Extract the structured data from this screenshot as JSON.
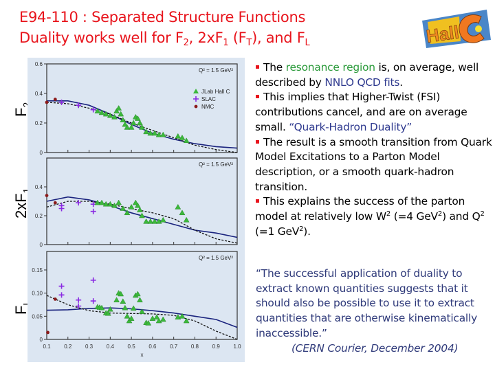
{
  "header": {
    "title_line1": "E94-110 : Separated Structure Functions",
    "title_line2_prefix": "Duality works well for F",
    "title_line2_sub1": "2",
    "title_line2_mid1": ", 2xF",
    "title_line2_sub2": "1",
    "title_line2_mid2": " (F",
    "title_line2_sub3": "T",
    "title_line2_mid3": "), and F",
    "title_line2_sub4": "L",
    "title_color": "#e8141c",
    "logo": {
      "text": "Hall C",
      "icon": "hall-c-logo-icon"
    }
  },
  "y_labels": {
    "f2": {
      "main": "F",
      "sub": "2"
    },
    "f1": {
      "main": "2xF",
      "sub": "1"
    },
    "fl": {
      "main": "F",
      "sub": "L"
    }
  },
  "bullets": [
    {
      "parts": [
        {
          "t": "The "
        },
        {
          "t": "resonance region",
          "c": "green"
        },
        {
          "t": " is, on average, well described by "
        },
        {
          "t": "NNLO QCD fits",
          "c": "blue"
        },
        {
          "t": "."
        }
      ]
    },
    {
      "parts": [
        {
          "t": "This implies that Higher-Twist (FSI) contributions cancel, and are on average small. "
        },
        {
          "t": "“Quark-Hadron Duality”",
          "c": "blue"
        }
      ]
    },
    {
      "parts": [
        {
          "t": "The result is a smooth transition from Quark Model Excitations to a Parton Model description, or a smooth quark-hadron transition."
        }
      ]
    },
    {
      "parts": [
        {
          "t": "This explains the success of the parton model at relatively low W"
        },
        {
          "t": "2",
          "sup": true
        },
        {
          "t": " (=4 GeV"
        },
        {
          "t": "2",
          "sup": true
        },
        {
          "t": ") and Q"
        },
        {
          "t": "2",
          "sup": true
        },
        {
          "t": " (=1 GeV"
        },
        {
          "t": "2",
          "sup": true
        },
        {
          "t": ")."
        }
      ]
    }
  ],
  "quote": {
    "text": "“The successful application of duality to extract known quantities suggests that it should also be possible  to use it to extract quantities that are otherwise kinematically inaccessible.”",
    "citation": "(CERN Courier, December 2004)"
  },
  "chart_data": [
    {
      "type": "scatter",
      "title": "F2",
      "annotation": "Q² = 1.5 GeV²",
      "xlabel": "x",
      "ylabel": "F2",
      "xlim": [
        0.1,
        1.0
      ],
      "ylim": [
        0,
        0.6
      ],
      "yticks": [
        0,
        0.2,
        0.4,
        0.6
      ],
      "legend": [
        "JLab Hall C",
        "SLAC",
        "NMC"
      ],
      "legend_colors": {
        "JLab Hall C": "#3cb83c",
        "SLAC": "#8a2be2",
        "NMC": "#8b1a1a"
      },
      "series": [
        {
          "name": "NMC",
          "x": [
            0.1,
            0.14
          ],
          "y": [
            0.34,
            0.36
          ]
        },
        {
          "name": "SLAC",
          "x": [
            0.17,
            0.25,
            0.32
          ],
          "y": [
            0.34,
            0.32,
            0.29
          ]
        },
        {
          "name": "JLab Hall C",
          "x": [
            0.34,
            0.36,
            0.38,
            0.4,
            0.42,
            0.43,
            0.44,
            0.45,
            0.46,
            0.47,
            0.48,
            0.5,
            0.51,
            0.52,
            0.53,
            0.54,
            0.55,
            0.57,
            0.59,
            0.61,
            0.63,
            0.65,
            0.72,
            0.74,
            0.76
          ],
          "y": [
            0.28,
            0.27,
            0.26,
            0.25,
            0.24,
            0.28,
            0.3,
            0.26,
            0.22,
            0.19,
            0.17,
            0.17,
            0.2,
            0.24,
            0.23,
            0.2,
            0.17,
            0.14,
            0.13,
            0.13,
            0.12,
            0.12,
            0.11,
            0.1,
            0.08
          ]
        },
        {
          "name": "NNLO QCD (solid)",
          "x": [
            0.1,
            0.2,
            0.3,
            0.4,
            0.5,
            0.6,
            0.7,
            0.8,
            0.9,
            1.0
          ],
          "y": [
            0.35,
            0.35,
            0.32,
            0.26,
            0.19,
            0.13,
            0.09,
            0.06,
            0.04,
            0.03
          ]
        },
        {
          "name": "NNLO QCD (dashed)",
          "x": [
            0.1,
            0.2,
            0.3,
            0.4,
            0.5,
            0.6,
            0.7,
            0.8,
            0.9,
            1.0
          ],
          "y": [
            0.34,
            0.33,
            0.3,
            0.26,
            0.2,
            0.15,
            0.1,
            0.05,
            0.02,
            0.0
          ]
        }
      ]
    },
    {
      "type": "scatter",
      "title": "2xF1",
      "annotation": "Q² = 1.5 GeV²",
      "xlabel": "x",
      "ylabel": "2xF1",
      "xlim": [
        0.1,
        1.0
      ],
      "ylim": [
        0,
        0.6
      ],
      "yticks": [
        0,
        0.2,
        0.4
      ],
      "series": [
        {
          "name": "NMC",
          "x": [
            0.1,
            0.14
          ],
          "y": [
            0.34,
            0.29
          ]
        },
        {
          "name": "SLAC",
          "x": [
            0.17,
            0.17,
            0.25,
            0.32,
            0.32
          ],
          "y": [
            0.27,
            0.25,
            0.29,
            0.28,
            0.23
          ]
        },
        {
          "name": "JLab Hall C",
          "x": [
            0.34,
            0.36,
            0.38,
            0.4,
            0.42,
            0.44,
            0.46,
            0.48,
            0.5,
            0.52,
            0.53,
            0.54,
            0.55,
            0.57,
            0.59,
            0.61,
            0.63,
            0.65,
            0.72,
            0.74,
            0.76
          ],
          "y": [
            0.29,
            0.29,
            0.28,
            0.28,
            0.27,
            0.29,
            0.25,
            0.22,
            0.26,
            0.29,
            0.27,
            0.24,
            0.2,
            0.16,
            0.16,
            0.16,
            0.16,
            0.17,
            0.26,
            0.22,
            0.17
          ]
        },
        {
          "name": "NNLO QCD (solid)",
          "x": [
            0.1,
            0.2,
            0.3,
            0.4,
            0.5,
            0.6,
            0.7,
            0.8,
            0.9,
            1.0
          ],
          "y": [
            0.3,
            0.33,
            0.31,
            0.27,
            0.22,
            0.18,
            0.14,
            0.1,
            0.08,
            0.05
          ]
        },
        {
          "name": "NNLO QCD (dashed)",
          "x": [
            0.1,
            0.2,
            0.3,
            0.4,
            0.5,
            0.6,
            0.7,
            0.8,
            0.9,
            1.0
          ],
          "y": [
            0.26,
            0.3,
            0.3,
            0.28,
            0.25,
            0.22,
            0.18,
            0.1,
            0.04,
            0.01
          ]
        }
      ]
    },
    {
      "type": "scatter",
      "title": "FL",
      "annotation": "Q² = 1.5 GeV²",
      "xlabel": "x",
      "ylabel": "FL",
      "xlim": [
        0.1,
        1.0
      ],
      "ylim": [
        0,
        0.18
      ],
      "yticks": [
        0,
        0.05,
        0.1,
        0.15
      ],
      "xticks": [
        0.1,
        0.2,
        0.3,
        0.4,
        0.5,
        0.6,
        0.7,
        0.8,
        0.9,
        1.0
      ],
      "series": [
        {
          "name": "NMC",
          "x": [
            0.105,
            0.14
          ],
          "y": [
            0.015,
            0.087
          ]
        },
        {
          "name": "SLAC",
          "x": [
            0.17,
            0.17,
            0.25,
            0.25,
            0.32,
            0.32
          ],
          "y": [
            0.115,
            0.096,
            0.085,
            0.072,
            0.128,
            0.083
          ]
        },
        {
          "name": "JLab Hall C",
          "x": [
            0.34,
            0.35,
            0.36,
            0.38,
            0.39,
            0.4,
            0.43,
            0.44,
            0.45,
            0.46,
            0.47,
            0.48,
            0.49,
            0.5,
            0.51,
            0.52,
            0.53,
            0.54,
            0.55,
            0.57,
            0.58,
            0.6,
            0.62,
            0.63,
            0.65,
            0.72,
            0.74,
            0.76
          ],
          "y": [
            0.07,
            0.069,
            0.068,
            0.057,
            0.056,
            0.065,
            0.085,
            0.1,
            0.098,
            0.082,
            0.068,
            0.05,
            0.04,
            0.045,
            0.067,
            0.095,
            0.098,
            0.085,
            0.06,
            0.036,
            0.035,
            0.045,
            0.048,
            0.04,
            0.043,
            0.048,
            0.05,
            0.04
          ]
        },
        {
          "name": "NNLO QCD (solid)",
          "x": [
            0.1,
            0.2,
            0.3,
            0.4,
            0.5,
            0.6,
            0.7,
            0.8,
            0.9,
            1.0
          ],
          "y": [
            0.063,
            0.064,
            0.067,
            0.068,
            0.066,
            0.062,
            0.057,
            0.05,
            0.043,
            0.026
          ]
        },
        {
          "name": "NNLO QCD (dashed)",
          "x": [
            0.1,
            0.2,
            0.3,
            0.4,
            0.5,
            0.6,
            0.7,
            0.8,
            0.9,
            1.0
          ],
          "y": [
            0.095,
            0.075,
            0.062,
            0.057,
            0.056,
            0.055,
            0.052,
            0.04,
            0.018,
            0.0
          ]
        }
      ]
    }
  ]
}
